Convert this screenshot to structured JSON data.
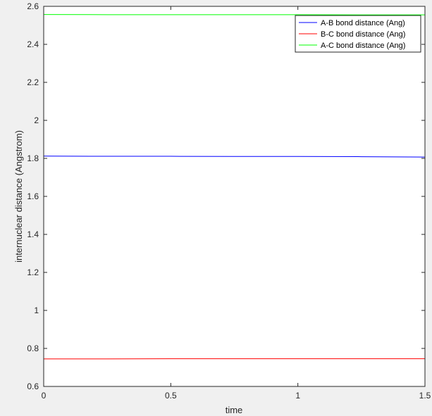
{
  "chart_data": {
    "type": "line",
    "xlabel": "time",
    "ylabel": "internuclear distance (Angstrom)",
    "xlim": [
      0,
      1.5
    ],
    "ylim": [
      0.6,
      2.6
    ],
    "xticks": [
      0,
      0.5,
      1,
      1.5
    ],
    "xtick_labels": [
      "0",
      "0.5",
      "1",
      "1.5"
    ],
    "yticks": [
      0.6,
      0.8,
      1,
      1.2,
      1.4,
      1.6,
      1.8,
      2,
      2.2,
      2.4,
      2.6
    ],
    "ytick_labels": [
      "0.6",
      "0.8",
      "1",
      "1.2",
      "1.4",
      "1.6",
      "1.8",
      "2",
      "2.2",
      "2.4",
      "2.6"
    ],
    "grid": false,
    "legend_position": "top-right",
    "series": [
      {
        "name": "A-B bond distance (Ang)",
        "color": "#0000ff",
        "x": [
          0,
          0.25,
          0.5,
          0.75,
          1.0,
          1.25,
          1.5
        ],
        "y": [
          1.812,
          1.811,
          1.811,
          1.81,
          1.81,
          1.809,
          1.807
        ]
      },
      {
        "name": "B-C bond distance (Ang)",
        "color": "#ff0000",
        "x": [
          0,
          0.25,
          0.5,
          0.75,
          1.0,
          1.25,
          1.5
        ],
        "y": [
          0.745,
          0.745,
          0.746,
          0.746,
          0.746,
          0.746,
          0.746
        ]
      },
      {
        "name": "A-C bond distance (Ang)",
        "color": "#00ff00",
        "x": [
          0,
          0.25,
          0.5,
          0.75,
          1.0,
          1.25,
          1.5
        ],
        "y": [
          2.557,
          2.556,
          2.556,
          2.556,
          2.556,
          2.555,
          2.555
        ]
      }
    ]
  }
}
